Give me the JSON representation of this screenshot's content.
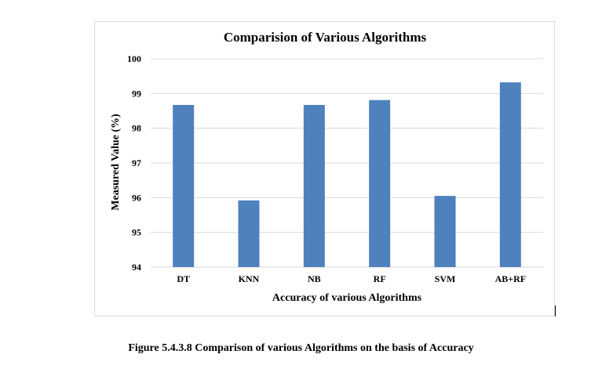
{
  "caption": "Figure 5.4.3.8 Comparison of various Algorithms on the basis of Accuracy",
  "colors": {
    "bar": "#4f81bd",
    "grid": "#d9d9d9",
    "frame": "#d9d9d9"
  },
  "chart_data": {
    "type": "bar",
    "title": "Comparision of Various Algorithms",
    "xlabel": "Accuracy of various Algorithms",
    "ylabel": "Measured Value (%)",
    "categories": [
      "DT",
      "KNN",
      "NB",
      "RF",
      "SVM",
      "AB+RF"
    ],
    "values": [
      98.67,
      95.92,
      98.67,
      98.81,
      96.05,
      99.32
    ],
    "ylim": [
      94,
      100
    ],
    "yticks": [
      "94",
      "95",
      "96",
      "97",
      "98",
      "99",
      "100"
    ],
    "grid": true,
    "legend": "none"
  }
}
